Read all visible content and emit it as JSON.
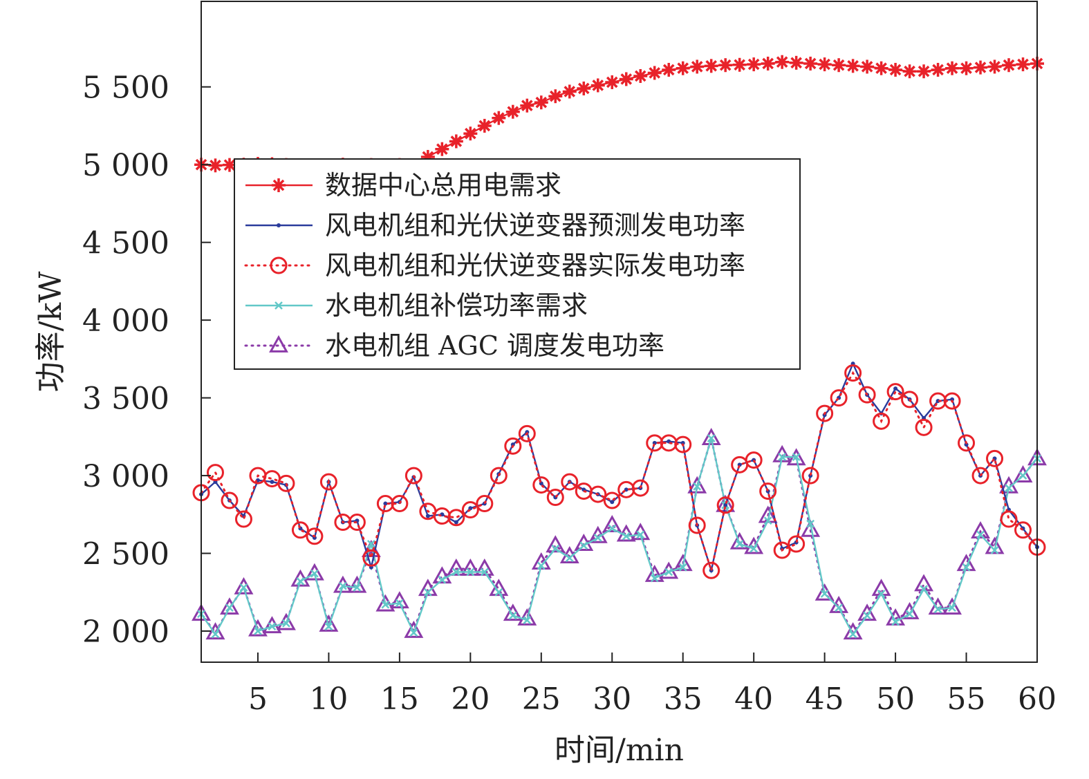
{
  "chart_data": {
    "type": "line",
    "xlabel": "时间/min",
    "ylabel": "功率/kW",
    "xlim": [
      1,
      60
    ],
    "ylim": [
      1800,
      6050
    ],
    "x_ticks": [
      5,
      10,
      15,
      20,
      25,
      30,
      35,
      40,
      45,
      50,
      55,
      60
    ],
    "y_ticks": [
      2000,
      2500,
      3000,
      3500,
      4000,
      4500,
      5000,
      5500
    ],
    "y_tick_labels": [
      "2 000",
      "2 500",
      "3 000",
      "3 500",
      "4 000",
      "4 500",
      "5 000",
      "5 500"
    ],
    "grid": false,
    "legend_position": "upper-left",
    "x": [
      1,
      2,
      3,
      4,
      5,
      6,
      7,
      8,
      9,
      10,
      11,
      12,
      13,
      14,
      15,
      16,
      17,
      18,
      19,
      20,
      21,
      22,
      23,
      24,
      25,
      26,
      27,
      28,
      29,
      30,
      31,
      32,
      33,
      34,
      35,
      36,
      37,
      38,
      39,
      40,
      41,
      42,
      43,
      44,
      45,
      46,
      47,
      48,
      49,
      50,
      51,
      52,
      53,
      54,
      55,
      56,
      57,
      58,
      59,
      60
    ],
    "series": [
      {
        "name": "数据中心总用电需求",
        "color": "#e8222a",
        "line": "solid",
        "marker": "asterisk",
        "values": [
          5000,
          4995,
          4998,
          5000,
          5005,
          5003,
          4998,
          4990,
          4992,
          4995,
          5000,
          4995,
          4998,
          4995,
          4998,
          4992,
          5050,
          5100,
          5150,
          5200,
          5250,
          5300,
          5340,
          5380,
          5400,
          5440,
          5470,
          5490,
          5510,
          5530,
          5550,
          5570,
          5590,
          5610,
          5620,
          5630,
          5635,
          5640,
          5642,
          5645,
          5650,
          5660,
          5655,
          5650,
          5645,
          5640,
          5635,
          5630,
          5620,
          5610,
          5600,
          5600,
          5610,
          5620,
          5620,
          5625,
          5630,
          5640,
          5645,
          5650
        ]
      },
      {
        "name": "风电机组和光伏逆变器预测发电功率",
        "color": "#2a3b9c",
        "line": "solid",
        "marker": "dot",
        "values": [
          2880,
          2960,
          2840,
          2740,
          2970,
          2960,
          2940,
          2660,
          2600,
          2960,
          2700,
          2710,
          2410,
          2820,
          2830,
          2990,
          2740,
          2750,
          2700,
          2790,
          2820,
          3010,
          3200,
          3280,
          2950,
          2860,
          2960,
          2910,
          2880,
          2830,
          2910,
          2920,
          3210,
          3220,
          3210,
          2680,
          2390,
          2810,
          3070,
          3100,
          2900,
          2530,
          2570,
          3000,
          3390,
          3500,
          3720,
          3520,
          3400,
          3560,
          3490,
          3370,
          3480,
          3490,
          3200,
          3000,
          3110,
          2780,
          2660,
          2540
        ]
      },
      {
        "name": "风电机组和光伏逆变器实际发电功率",
        "color": "#e8222a",
        "line": "dotted",
        "marker": "circle",
        "values": [
          2890,
          3020,
          2840,
          2720,
          3000,
          2980,
          2950,
          2650,
          2610,
          2960,
          2700,
          2700,
          2470,
          2820,
          2820,
          3000,
          2770,
          2740,
          2730,
          2780,
          2820,
          3000,
          3190,
          3270,
          2940,
          2860,
          2960,
          2900,
          2880,
          2840,
          2910,
          2920,
          3210,
          3210,
          3200,
          2680,
          2390,
          2810,
          3070,
          3100,
          2900,
          2520,
          2560,
          3000,
          3400,
          3500,
          3660,
          3520,
          3350,
          3540,
          3490,
          3310,
          3480,
          3480,
          3210,
          3000,
          3110,
          2720,
          2650,
          2540
        ]
      },
      {
        "name": "水电机组补偿功率需求",
        "color": "#62c8c8",
        "line": "solid",
        "marker": "x",
        "values": [
          2110,
          1980,
          2150,
          2280,
          2000,
          2030,
          2050,
          2320,
          2370,
          2030,
          2290,
          2280,
          2560,
          2170,
          2180,
          1990,
          2250,
          2330,
          2380,
          2380,
          2380,
          2250,
          2100,
          2070,
          2420,
          2530,
          2470,
          2550,
          2600,
          2660,
          2610,
          2620,
          2340,
          2380,
          2410,
          2930,
          3240,
          2810,
          2560,
          2530,
          2710,
          3120,
          3120,
          2690,
          2240,
          2150,
          1980,
          2100,
          2240,
          2060,
          2110,
          2270,
          2140,
          2150,
          2410,
          2620,
          2520,
          2920,
          3000,
          3110
        ]
      },
      {
        "name": "水电机组 AGC 调度发电功率",
        "color": "#8b3aa8",
        "line": "dotted",
        "marker": "triangle",
        "values": [
          2110,
          1990,
          2150,
          2280,
          2010,
          2030,
          2050,
          2330,
          2370,
          2040,
          2290,
          2290,
          2520,
          2170,
          2190,
          2000,
          2270,
          2350,
          2400,
          2400,
          2400,
          2270,
          2110,
          2080,
          2440,
          2550,
          2480,
          2560,
          2610,
          2680,
          2620,
          2630,
          2360,
          2380,
          2430,
          2930,
          3240,
          2810,
          2570,
          2540,
          2740,
          3130,
          3110,
          2650,
          2240,
          2160,
          1990,
          2110,
          2270,
          2080,
          2120,
          2300,
          2150,
          2150,
          2430,
          2640,
          2540,
          2930,
          3000,
          3110
        ]
      }
    ]
  }
}
